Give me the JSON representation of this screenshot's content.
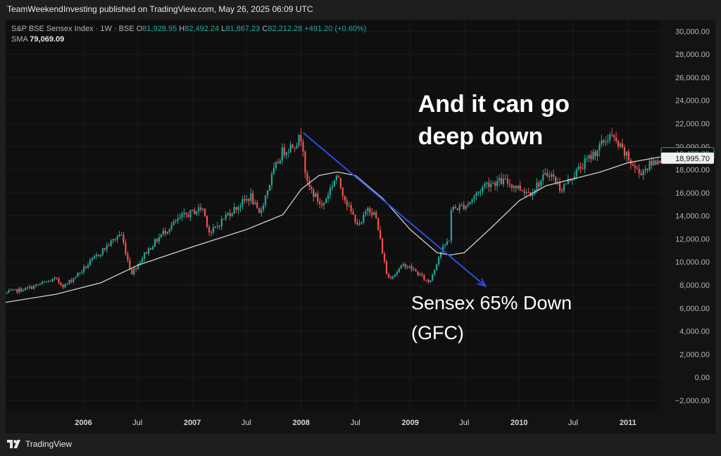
{
  "publisher_line": "TeamWeekendInvesting published on TradingView.com, May 26, 2025 06:09 UTC",
  "legend": {
    "symbol": "S&P BSE Sensex Index · 1W · BSE",
    "open_label": "O",
    "open": "81,928.95",
    "high_label": "H",
    "high": "82,492.24",
    "low_label": "L",
    "low": "81,867.23",
    "close_label": "C",
    "close": "82,212.28",
    "change": "+491.20 (+0.60%)",
    "sma_label": "SMA",
    "sma_value": "79,069.09"
  },
  "footer": {
    "brand": "TradingView",
    "logo_icon": "tradingview-logo-icon"
  },
  "colors": {
    "up": "#26a69a",
    "down": "#ef5350",
    "sma": "#cfcfcf",
    "trend": "#2d4ee0",
    "background": "#0f0f0f",
    "grid": "#1c1c1c"
  },
  "chart_data": {
    "type": "candlestick",
    "title": "S&P BSE Sensex Index · 1W · BSE",
    "ylim": [
      -2800,
      31000
    ],
    "y_ticks": [
      -2000,
      0,
      2000,
      4000,
      6000,
      8000,
      10000,
      12000,
      14000,
      16000,
      18000,
      20000,
      22000,
      24000,
      26000,
      28000,
      30000
    ],
    "y_tick_labels": [
      "−2,000.00",
      "0.00",
      "2,000.00",
      "4,000.00",
      "6,000.00",
      "8,000.00",
      "10,000.00",
      "12,000.00",
      "14,000.00",
      "16,000.00",
      "18,000.00",
      "20,000.00",
      "22,000.00",
      "24,000.00",
      "26,000.00",
      "28,000.00",
      "30,000.00"
    ],
    "xlim": [
      "2005-04-15",
      "2011-04-20"
    ],
    "x_ticks": [
      {
        "date": "2006-01-01",
        "label": "2006",
        "bold": true
      },
      {
        "date": "2006-07-01",
        "label": "Jul",
        "bold": false
      },
      {
        "date": "2007-01-01",
        "label": "2007",
        "bold": true
      },
      {
        "date": "2007-07-01",
        "label": "Jul",
        "bold": false
      },
      {
        "date": "2008-01-01",
        "label": "2008",
        "bold": true
      },
      {
        "date": "2008-07-01",
        "label": "Jul",
        "bold": false
      },
      {
        "date": "2009-01-01",
        "label": "2009",
        "bold": true
      },
      {
        "date": "2009-07-01",
        "label": "Jul",
        "bold": false
      },
      {
        "date": "2010-01-01",
        "label": "2010",
        "bold": true
      },
      {
        "date": "2010-07-01",
        "label": "Jul",
        "bold": false
      },
      {
        "date": "2011-01-01",
        "label": "2011",
        "bold": true
      }
    ],
    "price_path": [
      [
        "2005-04-15",
        7300
      ],
      [
        "2005-07-01",
        7700
      ],
      [
        "2005-10-01",
        8500
      ],
      [
        "2005-11-01",
        7900
      ],
      [
        "2006-01-01",
        9300
      ],
      [
        "2006-03-01",
        10800
      ],
      [
        "2006-05-10",
        12500
      ],
      [
        "2006-06-14",
        9000
      ],
      [
        "2006-08-01",
        10800
      ],
      [
        "2006-10-01",
        12600
      ],
      [
        "2006-12-01",
        13900
      ],
      [
        "2007-02-08",
        14700
      ],
      [
        "2007-03-05",
        12400
      ],
      [
        "2007-05-01",
        14100
      ],
      [
        "2007-07-20",
        15700
      ],
      [
        "2007-08-16",
        14000
      ],
      [
        "2007-10-01",
        17600
      ],
      [
        "2007-11-01",
        19500
      ],
      [
        "2007-12-15",
        20300
      ],
      [
        "2008-01-08",
        20900
      ],
      [
        "2008-01-22",
        16800
      ],
      [
        "2008-03-15",
        14800
      ],
      [
        "2008-05-01",
        17500
      ],
      [
        "2008-06-15",
        14500
      ],
      [
        "2008-07-20",
        13000
      ],
      [
        "2008-08-15",
        14800
      ],
      [
        "2008-09-10",
        14000
      ],
      [
        "2008-10-20",
        8600
      ],
      [
        "2008-11-15",
        9000
      ],
      [
        "2008-12-15",
        9800
      ],
      [
        "2009-01-15",
        9300
      ],
      [
        "2009-03-09",
        8200
      ],
      [
        "2009-04-15",
        10800
      ],
      [
        "2009-05-15",
        12000
      ],
      [
        "2009-05-20",
        14500
      ],
      [
        "2009-07-15",
        15000
      ],
      [
        "2009-09-15",
        16800
      ],
      [
        "2009-11-15",
        17000
      ],
      [
        "2010-02-10",
        16000
      ],
      [
        "2010-04-15",
        17800
      ],
      [
        "2010-05-25",
        16300
      ],
      [
        "2010-07-15",
        17800
      ],
      [
        "2010-09-15",
        19500
      ],
      [
        "2010-11-05",
        21000
      ],
      [
        "2010-12-15",
        19700
      ],
      [
        "2011-02-10",
        17700
      ],
      [
        "2011-04-20",
        18995
      ]
    ],
    "sma_path": [
      [
        "2005-04-15",
        6500
      ],
      [
        "2005-10-01",
        7200
      ],
      [
        "2006-03-01",
        8200
      ],
      [
        "2006-07-01",
        9700
      ],
      [
        "2007-01-01",
        11300
      ],
      [
        "2007-07-01",
        12800
      ],
      [
        "2007-11-01",
        14100
      ],
      [
        "2008-01-01",
        16300
      ],
      [
        "2008-03-01",
        17500
      ],
      [
        "2008-05-01",
        17800
      ],
      [
        "2008-07-01",
        17500
      ],
      [
        "2008-10-01",
        15500
      ],
      [
        "2009-01-01",
        12800
      ],
      [
        "2009-04-01",
        10800
      ],
      [
        "2009-05-15",
        10600
      ],
      [
        "2009-07-01",
        10800
      ],
      [
        "2009-10-01",
        13000
      ],
      [
        "2010-01-01",
        15300
      ],
      [
        "2010-04-01",
        16600
      ],
      [
        "2010-07-01",
        17200
      ],
      [
        "2010-10-01",
        17800
      ],
      [
        "2011-01-01",
        18600
      ],
      [
        "2011-04-20",
        19100
      ]
    ],
    "last_price_labels": [
      {
        "label": "19,420.39",
        "value": 19420,
        "style": "outline"
      },
      {
        "label": "18,995.70",
        "value": 18995,
        "style": "filled"
      }
    ],
    "trend_arrow": {
      "from": [
        "2008-01-08",
        21200
      ],
      "to": [
        "2009-09-10",
        7900
      ]
    },
    "annotations": [
      {
        "text": "And it can go",
        "date": "2009-01-27",
        "value": 23000,
        "style": "headline"
      },
      {
        "text": "deep down",
        "date": "2009-01-27",
        "value": 20200,
        "style": "headline"
      },
      {
        "text": "Sensex 65% Down",
        "date": "2009-01-04",
        "value": 5900,
        "style": "note"
      },
      {
        "text": "(GFC)",
        "date": "2009-01-04",
        "value": 3300,
        "style": "note"
      }
    ]
  }
}
